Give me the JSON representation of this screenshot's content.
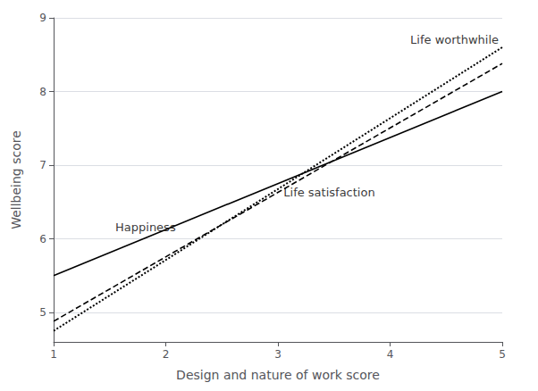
{
  "chart_data": {
    "type": "line",
    "xlabel": "Design and nature of work score",
    "ylabel": "Wellbeing score",
    "xlim": [
      1,
      5
    ],
    "ylim": [
      4.6,
      9.0
    ],
    "xticks": [
      1,
      2,
      3,
      4,
      5
    ],
    "yticks": [
      5,
      6,
      7,
      8,
      9
    ],
    "grid": true,
    "series": [
      {
        "name": "Happiness",
        "line_style": "solid",
        "color": "#000000",
        "x": [
          1,
          5
        ],
        "values": [
          5.5,
          8.0
        ]
      },
      {
        "name": "Life satisfaction",
        "line_style": "dashed",
        "color": "#000000",
        "x": [
          1,
          5
        ],
        "values": [
          4.88,
          8.38
        ]
      },
      {
        "name": "Life worthwhile",
        "line_style": "dotted",
        "color": "#000000",
        "x": [
          1,
          5
        ],
        "values": [
          4.75,
          8.6
        ]
      }
    ],
    "annotations": [
      {
        "text": "Happiness",
        "x": 1.55,
        "y": 6.08,
        "color": "#000000"
      },
      {
        "text": "Life satisfaction",
        "x": 3.05,
        "y": 6.55,
        "color": "#000000"
      },
      {
        "text": "Life worthwhile",
        "x": 4.18,
        "y": 8.62,
        "color": "#000000"
      }
    ]
  }
}
